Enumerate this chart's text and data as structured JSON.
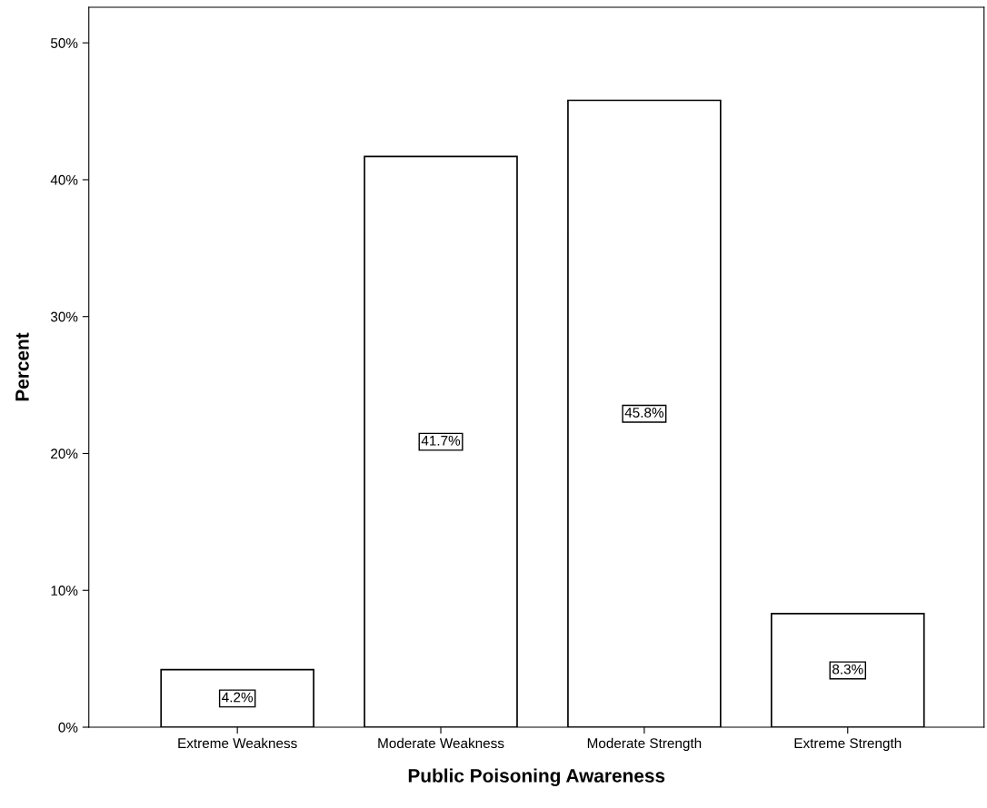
{
  "chart_data": {
    "type": "bar",
    "xlabel": "Public Poisoning Awareness",
    "ylabel": "Percent",
    "categories": [
      "Extreme Weakness",
      "Moderate Weakness",
      "Moderate Strength",
      "Extreme Strength"
    ],
    "values": [
      4.2,
      41.7,
      45.8,
      8.3
    ],
    "value_labels": [
      "4.2%",
      "41.7%",
      "45.8%",
      "8.3%"
    ],
    "color": "#ffffff",
    "ylim": [
      0,
      52.6
    ],
    "yticks": [
      {
        "value": 0,
        "label": "0%"
      },
      {
        "value": 10,
        "label": "10%"
      },
      {
        "value": 20,
        "label": "20%"
      },
      {
        "value": 30,
        "label": "30%"
      },
      {
        "value": 40,
        "label": "40%"
      },
      {
        "value": 50,
        "label": "50%"
      }
    ],
    "grid": false
  }
}
